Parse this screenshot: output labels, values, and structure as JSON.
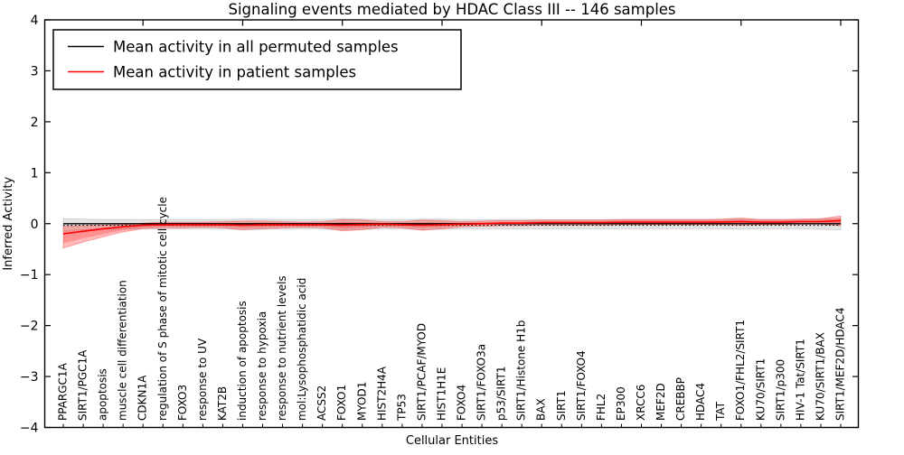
{
  "title": "Signaling events mediated by HDAC Class III -- 146 samples",
  "colors": {
    "permuted_line": "#000000",
    "patient_line": "#ff0000",
    "patient_band_alpha": 0.27,
    "permuted_band_color": "#787878",
    "permuted_band_alpha": 0.2,
    "frame": "#000000",
    "background": "#ffffff"
  },
  "chart_data": {
    "type": "line",
    "title": "Signaling events mediated by HDAC Class III -- 146 samples",
    "xlabel": "Cellular Entities",
    "ylabel": "Inferred Activity",
    "ylim": [
      -4,
      4
    ],
    "ytick_values": [
      4,
      3,
      2,
      1,
      0,
      -1,
      -2,
      -3,
      -4
    ],
    "ytick_labels": [
      "4",
      "3",
      "2",
      "1",
      "0",
      "−1",
      "−2",
      "−3",
      "−4"
    ],
    "grid": false,
    "legend_position": "upper left",
    "zero_line_style": "dotted",
    "categories": [
      "PPARGC1A",
      "SIRT1/PGC1A",
      "apoptosis",
      "muscle cell differentiation",
      "CDKN1A",
      "regulation of S phase of mitotic cell cycle",
      "FOXO3",
      "response to UV",
      "KAT2B",
      "induction of apoptosis",
      "response to hypoxia",
      "response to nutrient levels",
      "mol:Lysophosphatidic acid",
      "ACSS2",
      "FOXO1",
      "MYOD1",
      "HIST2H4A",
      "TP53",
      "SIRT1/PCAF/MYOD",
      "HIST1H1E",
      "FOXO4",
      "SIRT1/FOXO3a",
      "p53/SIRT1",
      "SIRT1/Histone H1b",
      "BAX",
      "SIRT1",
      "SIRT1/FOXO4",
      "FHL2",
      "EP300",
      "XRCC6",
      "MEF2D",
      "CREBBP",
      "HDAC4",
      "TAT",
      "FOXO1/FHL2/SIRT1",
      "KU70/SIRT1",
      "SIRT1/p300",
      "HIV-1 Tat/SIRT1",
      "KU70/SIRT1/BAX",
      "SIRT1/MEF2D/HDAC4"
    ],
    "series": [
      {
        "name": "Mean activity in all permuted samples",
        "color": "#000000",
        "values": [
          0,
          0,
          0,
          0,
          0,
          0,
          0,
          0,
          0,
          0,
          0,
          0,
          0,
          0,
          0,
          0,
          0,
          0,
          0,
          0,
          0,
          0,
          0,
          0,
          0,
          0,
          0,
          0,
          0,
          0,
          0,
          0,
          0,
          0,
          0,
          0,
          0,
          0,
          0,
          0
        ],
        "band_lo": [
          -0.14,
          -0.12,
          -0.11,
          -0.1,
          -0.1,
          -0.1,
          -0.1,
          -0.1,
          -0.1,
          -0.12,
          -0.11,
          -0.1,
          -0.1,
          -0.1,
          -0.12,
          -0.11,
          -0.1,
          -0.1,
          -0.12,
          -0.11,
          -0.1,
          -0.1,
          -0.1,
          -0.1,
          -0.1,
          -0.1,
          -0.1,
          -0.1,
          -0.1,
          -0.1,
          -0.1,
          -0.1,
          -0.1,
          -0.1,
          -0.11,
          -0.1,
          -0.1,
          -0.1,
          -0.11,
          -0.12
        ],
        "band_hi": [
          0.1,
          0.09,
          0.08,
          0.08,
          0.08,
          0.08,
          0.08,
          0.08,
          0.08,
          0.09,
          0.09,
          0.08,
          0.08,
          0.08,
          0.1,
          0.09,
          0.08,
          0.08,
          0.09,
          0.09,
          0.08,
          0.08,
          0.08,
          0.08,
          0.08,
          0.08,
          0.08,
          0.08,
          0.08,
          0.08,
          0.08,
          0.08,
          0.08,
          0.08,
          0.09,
          0.08,
          0.08,
          0.08,
          0.09,
          0.1
        ]
      },
      {
        "name": "Mean activity in patient samples",
        "color": "#ff0000",
        "values": [
          -0.2,
          -0.15,
          -0.1,
          -0.06,
          -0.03,
          -0.02,
          -0.02,
          -0.02,
          -0.02,
          -0.03,
          -0.02,
          -0.02,
          -0.02,
          -0.02,
          -0.03,
          -0.02,
          -0.01,
          -0.02,
          -0.03,
          -0.02,
          -0.01,
          0.0,
          0.01,
          0.01,
          0.02,
          0.02,
          0.02,
          0.02,
          0.03,
          0.03,
          0.03,
          0.03,
          0.03,
          0.03,
          0.04,
          0.03,
          0.03,
          0.04,
          0.04,
          0.06
        ],
        "band_lo": [
          -0.48,
          -0.36,
          -0.26,
          -0.16,
          -0.1,
          -0.08,
          -0.08,
          -0.07,
          -0.08,
          -0.12,
          -0.1,
          -0.08,
          -0.07,
          -0.08,
          -0.14,
          -0.12,
          -0.07,
          -0.08,
          -0.13,
          -0.1,
          -0.06,
          -0.05,
          -0.04,
          -0.04,
          -0.03,
          -0.03,
          -0.03,
          -0.03,
          -0.02,
          -0.02,
          -0.02,
          -0.02,
          -0.02,
          -0.02,
          -0.03,
          -0.02,
          -0.02,
          -0.01,
          -0.01,
          -0.04
        ],
        "band_hi": [
          -0.05,
          -0.04,
          -0.03,
          -0.02,
          0.01,
          0.03,
          0.03,
          0.03,
          0.04,
          0.05,
          0.05,
          0.04,
          0.03,
          0.04,
          0.08,
          0.07,
          0.04,
          0.04,
          0.07,
          0.06,
          0.04,
          0.05,
          0.06,
          0.06,
          0.07,
          0.07,
          0.07,
          0.07,
          0.08,
          0.08,
          0.08,
          0.08,
          0.08,
          0.09,
          0.11,
          0.08,
          0.08,
          0.09,
          0.1,
          0.15
        ]
      }
    ]
  }
}
